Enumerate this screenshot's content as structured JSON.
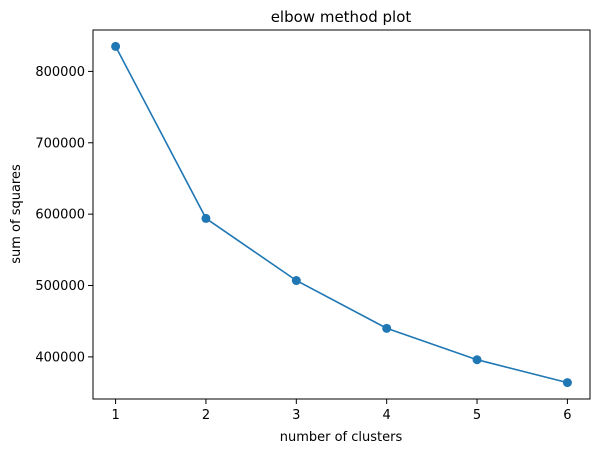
{
  "chart_data": {
    "type": "line",
    "title": "elbow method plot",
    "xlabel": "number of clusters",
    "ylabel": "sum of squares",
    "x": [
      1,
      2,
      3,
      4,
      5,
      6
    ],
    "series": [
      {
        "values": [
          835000,
          594000,
          507000,
          440000,
          396000,
          364000
        ],
        "color": "#1f77b4",
        "marker": "circle"
      }
    ],
    "xlim": [
      0.75,
      6.25
    ],
    "ylim": [
      341000,
      858000
    ],
    "xticks": [
      1,
      2,
      3,
      4,
      5,
      6
    ],
    "xtick_labels": [
      "1",
      "2",
      "3",
      "4",
      "5",
      "6"
    ],
    "yticks": [
      400000,
      500000,
      600000,
      700000,
      800000
    ],
    "ytick_labels": [
      "400000",
      "500000",
      "600000",
      "700000",
      "800000"
    ],
    "grid": false,
    "legend": "none"
  }
}
